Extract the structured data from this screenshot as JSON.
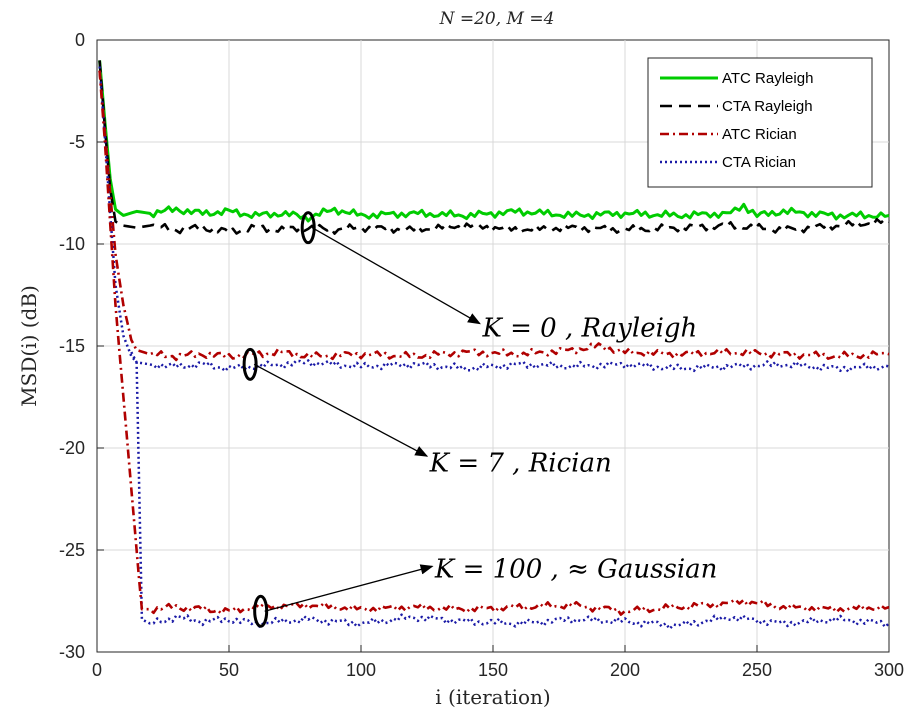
{
  "chart_data": {
    "type": "line",
    "title": "N =20, M =4",
    "xlabel": "i (iteration)",
    "ylabel": "MSD(i) (dB)",
    "xlim": [
      0,
      300
    ],
    "ylim": [
      -30,
      0
    ],
    "xticks": [
      0,
      50,
      100,
      150,
      200,
      250,
      300
    ],
    "yticks": [
      0,
      -5,
      -10,
      -15,
      -20,
      -25,
      -30
    ],
    "grid": true,
    "legend_position": "top-right",
    "legend": [
      "ATC Rayleigh",
      "CTA Rayleigh",
      "ATC Rician",
      "CTA Rician"
    ],
    "colors": {
      "atc_rayleigh": "#00cc00",
      "cta_rayleigh": "#000000",
      "atc_rician": "#b00000",
      "cta_rician": "#1a1aa6"
    },
    "series": [
      {
        "name": "ATC Rayleigh",
        "style": "solid",
        "color": "#00cc00",
        "x": [
          1,
          3,
          5,
          7,
          10,
          15,
          20,
          30,
          40,
          50,
          60,
          70,
          80,
          90,
          100,
          120,
          140,
          160,
          180,
          200,
          220,
          240,
          245,
          250,
          260,
          280,
          300
        ],
        "y": [
          -1,
          -4,
          -6.8,
          -8.3,
          -8.6,
          -8.4,
          -8.5,
          -8.3,
          -8.5,
          -8.4,
          -8.6,
          -8.5,
          -8.7,
          -8.3,
          -8.6,
          -8.5,
          -8.6,
          -8.4,
          -8.6,
          -8.5,
          -8.6,
          -8.5,
          -8.1,
          -8.6,
          -8.4,
          -8.6,
          -8.6
        ]
      },
      {
        "name": "CTA Rayleigh",
        "style": "dashed",
        "color": "#000000",
        "x": [
          1,
          3,
          5,
          7,
          10,
          15,
          20,
          30,
          40,
          50,
          60,
          70,
          80,
          90,
          100,
          120,
          140,
          160,
          180,
          200,
          220,
          240,
          260,
          280,
          300
        ],
        "y": [
          -1,
          -4.3,
          -7.3,
          -8.9,
          -9.1,
          -9.2,
          -9.1,
          -9.3,
          -9.2,
          -9.4,
          -9.2,
          -9.3,
          -9.2,
          -9.3,
          -9.2,
          -9.3,
          -9.1,
          -9.3,
          -9.2,
          -9.3,
          -9.2,
          -9.1,
          -9.3,
          -9.1,
          -8.9
        ]
      },
      {
        "name": "ATC Rician",
        "style": "dashdot",
        "color": "#b00000",
        "x": [
          1,
          3,
          5,
          7,
          10,
          13,
          15,
          20,
          30,
          40,
          50,
          60,
          70,
          80,
          100,
          120,
          140,
          160,
          180,
          190,
          200,
          220,
          240,
          260,
          280,
          300
        ],
        "y": [
          -1.5,
          -4.5,
          -7.5,
          -10.5,
          -13,
          -14.7,
          -15.2,
          -15.4,
          -15.5,
          -15.4,
          -15.5,
          -15.4,
          -15.3,
          -15.5,
          -15.4,
          -15.5,
          -15.3,
          -15.4,
          -15.2,
          -15.0,
          -15.3,
          -15.4,
          -15.3,
          -15.4,
          -15.5,
          -15.4
        ]
      },
      {
        "name": "CTA Rician",
        "style": "dotted",
        "color": "#1a1aa6",
        "x": [
          1,
          3,
          5,
          7,
          10,
          13,
          15,
          17,
          20,
          30,
          40,
          50,
          60,
          80,
          100,
          120,
          140,
          160,
          180,
          200,
          220,
          240,
          260,
          280,
          300
        ],
        "y": [
          -1.3,
          -4.8,
          -8.5,
          -12,
          -14.5,
          -15.5,
          -15.8,
          -28.4,
          -28.6,
          -28.3,
          -28.5,
          -28.4,
          -28.6,
          -28.4,
          -28.6,
          -28.3,
          -28.5,
          -28.6,
          -28.4,
          -28.5,
          -28.7,
          -28.3,
          -28.6,
          -28.4,
          -28.6
        ]
      }
    ],
    "extra_curves": [
      {
        "color": "#1a1aa6",
        "style": "dotted",
        "x": [
          13,
          15,
          20,
          30,
          40,
          50,
          60,
          80,
          100,
          120,
          140,
          160,
          180,
          200,
          220,
          240,
          260,
          280,
          300
        ],
        "y": [
          -15.3,
          -15.8,
          -15.9,
          -16.0,
          -15.9,
          -16.1,
          -16.0,
          -15.8,
          -16.0,
          -15.9,
          -16.1,
          -15.9,
          -16.0,
          -15.9,
          -16.1,
          -16.0,
          -15.9,
          -16.1,
          -16.0
        ]
      },
      {
        "color": "#b00000",
        "style": "dashdot",
        "x": [
          1,
          3,
          5,
          7,
          10,
          13,
          16,
          17,
          20,
          30,
          40,
          50,
          60,
          80,
          100,
          120,
          140,
          160,
          180,
          200,
          220,
          240,
          245,
          260,
          280,
          300
        ],
        "y": [
          -1.5,
          -5,
          -9,
          -13,
          -17.5,
          -22,
          -26.5,
          -27.9,
          -27.9,
          -27.8,
          -27.9,
          -28.0,
          -27.8,
          -27.7,
          -27.9,
          -27.8,
          -27.9,
          -27.8,
          -27.7,
          -28.0,
          -27.8,
          -27.6,
          -27.5,
          -27.8,
          -27.9,
          -27.8
        ]
      }
    ],
    "annotations": [
      {
        "text": "K = 0 , Rayleigh",
        "marker": [
          80,
          -9.2
        ],
        "arrow_to": [
          145,
          -13.9
        ],
        "text_at": [
          146,
          -14.1
        ]
      },
      {
        "text": "K = 7 , Rician",
        "marker": [
          58,
          -15.9
        ],
        "arrow_to": [
          125,
          -20.4
        ],
        "text_at": [
          126,
          -20.7
        ]
      },
      {
        "text": "K = 100 , ≈ Gaussian",
        "marker": [
          62,
          -28.0
        ],
        "arrow_to": [
          127,
          -25.8
        ],
        "text_at": [
          128,
          -25.9
        ]
      }
    ]
  }
}
